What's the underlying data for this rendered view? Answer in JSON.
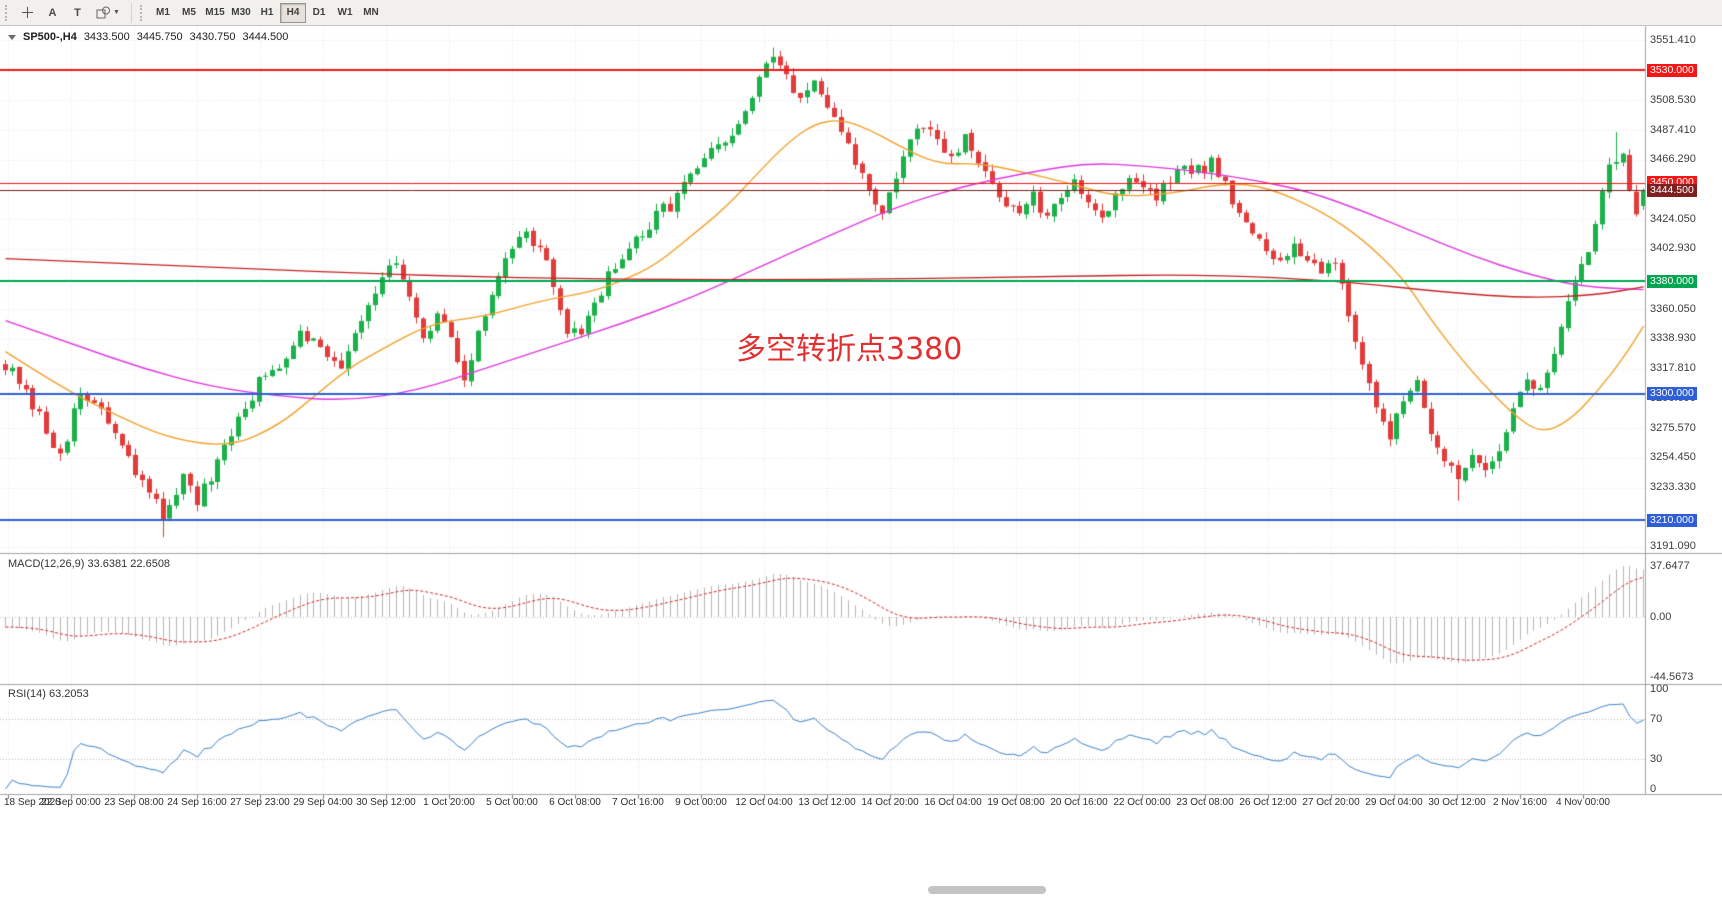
{
  "toolbar": {
    "tools": [
      {
        "id": "crosshair",
        "type": "icon"
      },
      {
        "id": "text-label",
        "label": "A"
      },
      {
        "id": "text",
        "label": "T"
      },
      {
        "id": "shapes",
        "type": "icon-dropdown"
      }
    ],
    "timeframes": [
      "M1",
      "M5",
      "M15",
      "M30",
      "H1",
      "H4",
      "D1",
      "W1",
      "MN"
    ],
    "active_timeframe": "H4"
  },
  "chart": {
    "title": {
      "symbol": "SP500-,H4",
      "open": "3433.500",
      "high": "3445.750",
      "low": "3430.750",
      "close": "3444.500"
    },
    "annotation": {
      "text": "多空转折点3380",
      "color": "#e23030"
    },
    "colors": {
      "bull": "#1cb04a",
      "bear": "#e23b3b",
      "macd_hist": "#b6b6b6",
      "macd_signal": "#d42a2a",
      "rsi_line": "#3d85c8"
    },
    "price_axis": {
      "plain_labels": [
        "3551.410",
        "3508.530",
        "3487.410",
        "3466.290",
        "3424.050",
        "3402.930",
        "3360.050",
        "3338.930",
        "3317.810",
        "3296.690",
        "3275.570",
        "3254.450",
        "3233.330",
        "3191.090"
      ],
      "badges": [
        {
          "text": "3530.000",
          "price": 3530,
          "bg": "#f51616"
        },
        {
          "text": "3450.000",
          "price": 3450,
          "bg": "#f51616"
        },
        {
          "text": "3444.500",
          "price": 3444.5,
          "bg": "#7e2020",
          "current": true
        },
        {
          "text": "3380.000",
          "price": 3380,
          "bg": "#00a651"
        },
        {
          "text": "3300.000",
          "price": 3300,
          "bg": "#2e5fd6"
        },
        {
          "text": "3210.000",
          "price": 3210,
          "bg": "#2e5fd6"
        }
      ]
    },
    "hlines": [
      {
        "price": 3530,
        "color": "#f51616",
        "w": 2
      },
      {
        "price": 3450,
        "color": "#f51616",
        "w": 1
      },
      {
        "price": 3444.5,
        "color": "#7e2020",
        "w": 1
      },
      {
        "price": 3380,
        "color": "#00a651",
        "w": 2
      },
      {
        "price": 3300,
        "color": "#2e5fd6",
        "w": 2
      },
      {
        "price": 3210,
        "color": "#2e5fd6",
        "w": 2
      }
    ]
  },
  "indicators": {
    "macd": {
      "label": "MACD(12,26,9) 33.6381 22.6508",
      "axis_labels": [
        {
          "text": "37.6477",
          "value": 37.6477
        },
        {
          "text": "0.00",
          "value": 0
        },
        {
          "text": "-44.5673",
          "value": -44.5673
        }
      ]
    },
    "rsi": {
      "label": "RSI(14) 63.2053",
      "levels": [
        70,
        30
      ],
      "axis_labels": [
        {
          "text": "100",
          "value": 100
        },
        {
          "text": "70",
          "value": 70
        },
        {
          "text": "30",
          "value": 30
        },
        {
          "text": "0",
          "value": 0
        }
      ]
    }
  },
  "time_axis": {
    "labels": [
      "18 Sep 2020",
      "22 Sep 00:00",
      "23 Sep 08:00",
      "24 Sep 16:00",
      "27 Sep 23:00",
      "29 Sep 04:00",
      "30 Sep 12:00",
      "1 Oct 20:00",
      "5 Oct 00:00",
      "6 Oct 08:00",
      "7 Oct 16:00",
      "9 Oct 00:00",
      "12 Oct 04:00",
      "13 Oct 12:00",
      "14 Oct 20:00",
      "16 Oct 04:00",
      "19 Oct 08:00",
      "20 Oct 16:00",
      "22 Oct 00:00",
      "23 Oct 08:00",
      "26 Oct 12:00",
      "27 Oct 20:00",
      "29 Oct 04:00",
      "30 Oct 12:00",
      "2 Nov 16:00",
      "4 Nov 00:00"
    ]
  },
  "chart_data": {
    "type": "candlestick",
    "symbol": "SP500",
    "timeframe": "H4",
    "bars": 240,
    "price_range": [
      3191.09,
      3551.41
    ],
    "last_bar": {
      "open": 3433.5,
      "high": 3445.75,
      "low": 3430.75,
      "close": 3444.5
    },
    "seed": 12345,
    "waypoints": [
      [
        0,
        3322
      ],
      [
        4,
        3290
      ],
      [
        8,
        3258
      ],
      [
        11,
        3298
      ],
      [
        14,
        3290
      ],
      [
        17,
        3260
      ],
      [
        20,
        3235
      ],
      [
        23,
        3215
      ],
      [
        26,
        3240
      ],
      [
        28,
        3222
      ],
      [
        31,
        3248
      ],
      [
        34,
        3282
      ],
      [
        37,
        3308
      ],
      [
        40,
        3320
      ],
      [
        43,
        3348
      ],
      [
        46,
        3332
      ],
      [
        49,
        3322
      ],
      [
        52,
        3355
      ],
      [
        55,
        3385
      ],
      [
        57,
        3390
      ],
      [
        59,
        3365
      ],
      [
        61,
        3335
      ],
      [
        63,
        3355
      ],
      [
        65,
        3340
      ],
      [
        67,
        3312
      ],
      [
        69,
        3340
      ],
      [
        71,
        3372
      ],
      [
        73,
        3398
      ],
      [
        75,
        3415
      ],
      [
        78,
        3405
      ],
      [
        80,
        3375
      ],
      [
        82,
        3345
      ],
      [
        84,
        3338
      ],
      [
        86,
        3365
      ],
      [
        88,
        3385
      ],
      [
        91,
        3400
      ],
      [
        94,
        3420
      ],
      [
        97,
        3435
      ],
      [
        100,
        3455
      ],
      [
        103,
        3470
      ],
      [
        106,
        3482
      ],
      [
        108,
        3500
      ],
      [
        110,
        3522
      ],
      [
        112,
        3538
      ],
      [
        114,
        3528
      ],
      [
        116,
        3510
      ],
      [
        118,
        3520
      ],
      [
        120,
        3498
      ],
      [
        122,
        3488
      ],
      [
        124,
        3465
      ],
      [
        126,
        3445
      ],
      [
        128,
        3428
      ],
      [
        130,
        3455
      ],
      [
        132,
        3478
      ],
      [
        134,
        3490
      ],
      [
        136,
        3478
      ],
      [
        138,
        3465
      ],
      [
        140,
        3480
      ],
      [
        142,
        3462
      ],
      [
        144,
        3448
      ],
      [
        146,
        3438
      ],
      [
        148,
        3425
      ],
      [
        150,
        3440
      ],
      [
        152,
        3422
      ],
      [
        154,
        3438
      ],
      [
        156,
        3452
      ],
      [
        158,
        3440
      ],
      [
        160,
        3425
      ],
      [
        162,
        3440
      ],
      [
        164,
        3455
      ],
      [
        166,
        3448
      ],
      [
        168,
        3438
      ],
      [
        170,
        3452
      ],
      [
        172,
        3462
      ],
      [
        174,
        3458
      ],
      [
        176,
        3465
      ],
      [
        178,
        3450
      ],
      [
        180,
        3430
      ],
      [
        182,
        3412
      ],
      [
        184,
        3400
      ],
      [
        186,
        3392
      ],
      [
        188,
        3408
      ],
      [
        190,
        3398
      ],
      [
        192,
        3388
      ],
      [
        194,
        3395
      ],
      [
        196,
        3360
      ],
      [
        198,
        3320
      ],
      [
        200,
        3285
      ],
      [
        202,
        3270
      ],
      [
        204,
        3300
      ],
      [
        206,
        3310
      ],
      [
        208,
        3275
      ],
      [
        210,
        3252
      ],
      [
        212,
        3235
      ],
      [
        214,
        3260
      ],
      [
        216,
        3248
      ],
      [
        218,
        3262
      ],
      [
        220,
        3290
      ],
      [
        222,
        3310
      ],
      [
        224,
        3300
      ],
      [
        226,
        3330
      ],
      [
        228,
        3365
      ],
      [
        230,
        3388
      ],
      [
        232,
        3420
      ],
      [
        234,
        3465
      ],
      [
        236,
        3475
      ],
      [
        237,
        3448
      ],
      [
        238,
        3430
      ],
      [
        239,
        3444.5
      ]
    ],
    "spikes": [
      {
        "bar": 23,
        "low": 3198
      },
      {
        "bar": 112,
        "high": 3546
      },
      {
        "bar": 212,
        "low": 3224
      },
      {
        "bar": 235,
        "high": 3486
      }
    ],
    "overlays": [
      {
        "name": "ma-fast-orange",
        "color": "#f2a22b",
        "points": [
          [
            0,
            3330
          ],
          [
            8,
            3305
          ],
          [
            16,
            3285
          ],
          [
            24,
            3268
          ],
          [
            33,
            3262
          ],
          [
            40,
            3278
          ],
          [
            45,
            3298
          ],
          [
            50,
            3318
          ],
          [
            55,
            3332
          ],
          [
            62,
            3350
          ],
          [
            70,
            3355
          ],
          [
            78,
            3366
          ],
          [
            85,
            3372
          ],
          [
            90,
            3380
          ],
          [
            95,
            3392
          ],
          [
            100,
            3412
          ],
          [
            105,
            3432
          ],
          [
            110,
            3458
          ],
          [
            114,
            3478
          ],
          [
            118,
            3492
          ],
          [
            122,
            3495
          ],
          [
            126,
            3488
          ],
          [
            130,
            3477
          ],
          [
            136,
            3463
          ],
          [
            142,
            3464
          ],
          [
            148,
            3458
          ],
          [
            155,
            3450
          ],
          [
            162,
            3440
          ],
          [
            170,
            3442
          ],
          [
            178,
            3450
          ],
          [
            184,
            3447
          ],
          [
            192,
            3430
          ],
          [
            198,
            3410
          ],
          [
            204,
            3382
          ],
          [
            208,
            3352
          ],
          [
            214,
            3315
          ],
          [
            220,
            3285
          ],
          [
            224,
            3272
          ],
          [
            228,
            3280
          ],
          [
            232,
            3300
          ],
          [
            236,
            3325
          ],
          [
            239,
            3348
          ]
        ]
      },
      {
        "name": "ma-mid-magenta",
        "color": "#e03ae0",
        "points": [
          [
            0,
            3352
          ],
          [
            10,
            3335
          ],
          [
            20,
            3318
          ],
          [
            30,
            3305
          ],
          [
            40,
            3298
          ],
          [
            50,
            3295
          ],
          [
            60,
            3302
          ],
          [
            70,
            3318
          ],
          [
            80,
            3334
          ],
          [
            90,
            3350
          ],
          [
            100,
            3368
          ],
          [
            110,
            3390
          ],
          [
            120,
            3412
          ],
          [
            130,
            3433
          ],
          [
            140,
            3448
          ],
          [
            150,
            3458
          ],
          [
            158,
            3464
          ],
          [
            166,
            3462
          ],
          [
            174,
            3458
          ],
          [
            182,
            3452
          ],
          [
            190,
            3444
          ],
          [
            198,
            3430
          ],
          [
            206,
            3414
          ],
          [
            214,
            3398
          ],
          [
            222,
            3385
          ],
          [
            230,
            3376
          ],
          [
            239,
            3374
          ]
        ]
      },
      {
        "name": "ma-slow-red",
        "color": "#c42424",
        "points": [
          [
            0,
            3396
          ],
          [
            30,
            3390
          ],
          [
            60,
            3384
          ],
          [
            90,
            3381
          ],
          [
            120,
            3381
          ],
          [
            150,
            3383
          ],
          [
            175,
            3385
          ],
          [
            195,
            3380
          ],
          [
            210,
            3372
          ],
          [
            222,
            3368
          ],
          [
            232,
            3370
          ],
          [
            239,
            3376
          ]
        ]
      }
    ]
  }
}
